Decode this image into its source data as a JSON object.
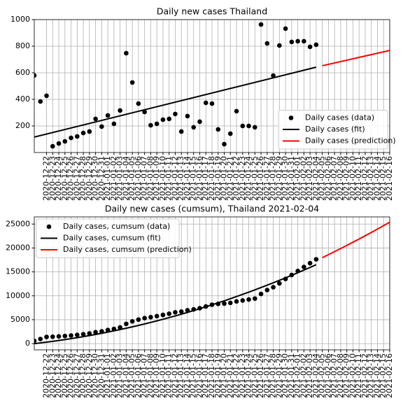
{
  "chart_data": [
    {
      "type": "scatter",
      "title": "Daily new cases Thailand",
      "x": [
        "2020-12-20",
        "2020-12-21",
        "2020-12-22",
        "2020-12-23",
        "2020-12-24",
        "2020-12-25",
        "2020-12-26",
        "2020-12-27",
        "2020-12-28",
        "2020-12-29",
        "2020-12-30",
        "2020-12-31",
        "2021-01-01",
        "2021-01-02",
        "2021-01-03",
        "2021-01-04",
        "2021-01-05",
        "2021-01-06",
        "2021-01-07",
        "2021-01-08",
        "2021-01-09",
        "2021-01-10",
        "2021-01-11",
        "2021-01-12",
        "2021-01-13",
        "2021-01-14",
        "2021-01-15",
        "2021-01-16",
        "2021-01-17",
        "2021-01-18",
        "2021-01-19",
        "2021-01-20",
        "2021-01-21",
        "2021-01-22",
        "2021-01-23",
        "2021-01-24",
        "2021-01-25",
        "2021-01-26",
        "2021-01-27",
        "2021-01-28",
        "2021-01-29",
        "2021-01-30",
        "2021-01-31",
        "2021-02-01",
        "2021-02-02",
        "2021-02-03",
        "2021-02-04"
      ],
      "series": [
        {
          "name": "Daily cases (data)",
          "kind": "points",
          "color": "#000000",
          "values": [
            580,
            384,
            427,
            47,
            68,
            84,
            110,
            121,
            147,
            158,
            253,
            195,
            279,
            216,
            316,
            747,
            527,
            368,
            305,
            205,
            216,
            247,
            253,
            290,
            158,
            274,
            190,
            232,
            374,
            368,
            174,
            63,
            142,
            311,
            200,
            200,
            190,
            963,
            821,
            579,
            805,
            932,
            832,
            837,
            837,
            795,
            811
          ]
        },
        {
          "name": "Daily cases (fit)",
          "kind": "line",
          "color": "#000000",
          "x": [
            "2020-12-20",
            "2021-02-04"
          ],
          "values": [
            116,
            642
          ]
        },
        {
          "name": "Daily cases (prediction)",
          "kind": "line",
          "color": "#ff0000",
          "x": [
            "2021-02-05",
            "2021-02-16"
          ],
          "values": [
            653,
            768
          ]
        }
      ],
      "xlim": [
        "2020-12-20",
        "2021-02-16"
      ],
      "xticks": [
        "2020-12-22",
        "2020-12-23",
        "2020-12-24",
        "2020-12-25",
        "2020-12-26",
        "2020-12-27",
        "2020-12-28",
        "2020-12-29",
        "2020-12-30",
        "2020-12-31",
        "2021-01-01",
        "2021-01-02",
        "2021-01-03",
        "2021-01-04",
        "2021-01-05",
        "2021-01-06",
        "2021-01-07",
        "2021-01-08",
        "2021-01-09",
        "2021-01-10",
        "2021-01-11",
        "2021-01-12",
        "2021-01-13",
        "2021-01-14",
        "2021-01-15",
        "2021-01-16",
        "2021-01-17",
        "2021-01-18",
        "2021-01-19",
        "2021-01-20",
        "2021-01-21",
        "2021-01-22",
        "2021-01-23",
        "2021-01-24",
        "2021-01-25",
        "2021-01-26",
        "2021-01-27",
        "2021-01-28",
        "2021-01-29",
        "2021-01-30",
        "2021-01-31",
        "2021-02-01",
        "2021-02-02",
        "2021-02-03",
        "2021-02-04",
        "2021-02-05",
        "2021-02-06",
        "2021-02-07",
        "2021-02-08",
        "2021-02-09",
        "2021-02-10",
        "2021-02-11",
        "2021-02-12",
        "2021-02-13",
        "2021-02-14",
        "2021-02-15",
        "2021-02-16"
      ],
      "ylim": [
        0,
        1000
      ],
      "yticks": [
        200,
        400,
        600,
        800,
        1000
      ],
      "grid": true,
      "legend": "lower right"
    },
    {
      "type": "scatter",
      "title": "Daily new cases (cumsum), Thailand 2021-02-04",
      "x": [
        "2020-12-20",
        "2020-12-21",
        "2020-12-22",
        "2020-12-23",
        "2020-12-24",
        "2020-12-25",
        "2020-12-26",
        "2020-12-27",
        "2020-12-28",
        "2020-12-29",
        "2020-12-30",
        "2020-12-31",
        "2021-01-01",
        "2021-01-02",
        "2021-01-03",
        "2021-01-04",
        "2021-01-05",
        "2021-01-06",
        "2021-01-07",
        "2021-01-08",
        "2021-01-09",
        "2021-01-10",
        "2021-01-11",
        "2021-01-12",
        "2021-01-13",
        "2021-01-14",
        "2021-01-15",
        "2021-01-16",
        "2021-01-17",
        "2021-01-18",
        "2021-01-19",
        "2021-01-20",
        "2021-01-21",
        "2021-01-22",
        "2021-01-23",
        "2021-01-24",
        "2021-01-25",
        "2021-01-26",
        "2021-01-27",
        "2021-01-28",
        "2021-01-29",
        "2021-01-30",
        "2021-01-31",
        "2021-02-01",
        "2021-02-02",
        "2021-02-03",
        "2021-02-04"
      ],
      "series": [
        {
          "name": "Daily cases, cumsum (data)",
          "kind": "points",
          "color": "#000000",
          "values": [
            580,
            964,
            1391,
            1438,
            1506,
            1590,
            1700,
            1821,
            1968,
            2126,
            2379,
            2574,
            2853,
            3069,
            3385,
            4132,
            4659,
            5027,
            5332,
            5537,
            5753,
            6000,
            6253,
            6543,
            6701,
            6975,
            7165,
            7397,
            7771,
            8139,
            8313,
            8376,
            8518,
            8829,
            9029,
            9229,
            9419,
            10382,
            11203,
            11782,
            12587,
            13519,
            14351,
            15188,
            16025,
            16820,
            17631
          ]
        },
        {
          "name": "Daily cases, cumsum (fit)",
          "kind": "line",
          "color": "#000000",
          "values": [
            0,
            149,
            308,
            476,
            654,
            841,
            1036,
            1241,
            1456,
            1680,
            1913,
            2155,
            2407,
            2668,
            2938,
            3218,
            3507,
            3805,
            4113,
            4430,
            4756,
            5091,
            5436,
            5790,
            6154,
            6526,
            6908,
            7300,
            7700,
            8110,
            8529,
            8957,
            9395,
            9842,
            10298,
            10764,
            11239,
            11723,
            12216,
            12719,
            13232,
            13753,
            14284,
            14824,
            15374,
            15932,
            16500
          ]
        },
        {
          "name": "Daily cases, cumsum (prediction)",
          "kind": "line",
          "color": "#ff0000",
          "x": [
            "2021-02-05",
            "2021-02-06",
            "2021-02-07",
            "2021-02-08",
            "2021-02-09",
            "2021-02-10",
            "2021-02-11",
            "2021-02-12",
            "2021-02-13",
            "2021-02-14",
            "2021-02-15",
            "2021-02-16"
          ],
          "values": [
            17978,
            18604,
            19240,
            19885,
            20540,
            21204,
            21876,
            22558,
            23250,
            23951,
            24662,
            25381
          ]
        }
      ],
      "xlim": [
        "2020-12-20",
        "2021-02-16"
      ],
      "xticks": [
        "2020-12-22",
        "2020-12-23",
        "2020-12-24",
        "2020-12-25",
        "2020-12-26",
        "2020-12-27",
        "2020-12-28",
        "2020-12-29",
        "2020-12-30",
        "2020-12-31",
        "2021-01-01",
        "2021-01-02",
        "2021-01-03",
        "2021-01-04",
        "2021-01-05",
        "2021-01-06",
        "2021-01-07",
        "2021-01-08",
        "2021-01-09",
        "2021-01-10",
        "2021-01-11",
        "2021-01-12",
        "2021-01-13",
        "2021-01-14",
        "2021-01-15",
        "2021-01-16",
        "2021-01-17",
        "2021-01-18",
        "2021-01-19",
        "2021-01-20",
        "2021-01-21",
        "2021-01-22",
        "2021-01-23",
        "2021-01-24",
        "2021-01-25",
        "2021-01-26",
        "2021-01-27",
        "2021-01-28",
        "2021-01-29",
        "2021-01-30",
        "2021-01-31",
        "2021-02-01",
        "2021-02-02",
        "2021-02-03",
        "2021-02-04",
        "2021-02-05",
        "2021-02-06",
        "2021-02-07",
        "2021-02-08",
        "2021-02-09",
        "2021-02-10",
        "2021-02-11",
        "2021-02-12",
        "2021-02-13",
        "2021-02-14",
        "2021-02-15",
        "2021-02-16"
      ],
      "ylim": [
        -1300,
        26500
      ],
      "yticks": [
        0,
        5000,
        10000,
        15000,
        20000,
        25000
      ],
      "grid": true,
      "legend": "upper left"
    }
  ]
}
